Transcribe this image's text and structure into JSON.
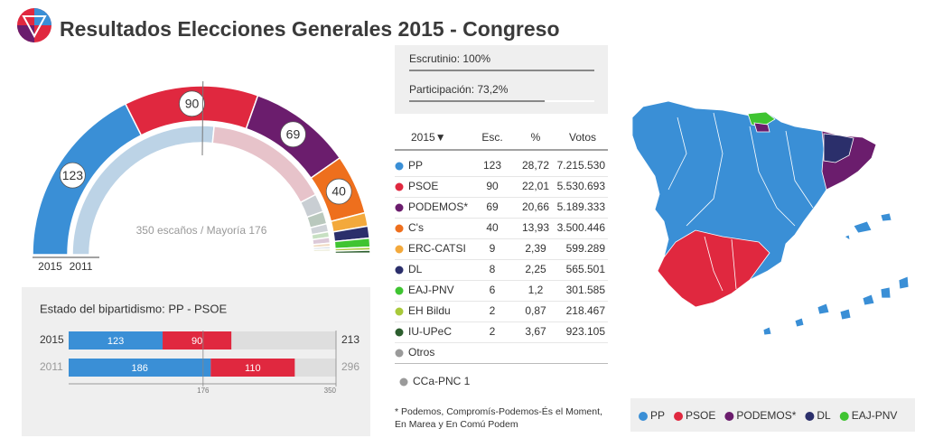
{
  "header": {
    "title": "Resultados Elecciones Generales 2015 - Congreso"
  },
  "chart_data": [
    {
      "type": "semicircle",
      "center_text": "350 escaños / Mayoría 176",
      "majority": 176,
      "series": [
        {
          "name": "2015",
          "values": [
            123,
            90,
            69,
            40,
            9,
            8,
            6,
            2,
            2,
            1
          ],
          "colors": [
            "#3a8fd6",
            "#e0283f",
            "#6b1d6d",
            "#ee6f1d",
            "#f3a93c",
            "#2b2f6b",
            "#3fc431",
            "#a8c93a",
            "#2c5e2e",
            "#9a9a9a"
          ]
        },
        {
          "name": "2011",
          "values": [
            186,
            110,
            16,
            11,
            7,
            5,
            5,
            3,
            2,
            2,
            1,
            1,
            1
          ],
          "colors": [
            "#bcd3e6",
            "#e7c3ca",
            "#c9ced3",
            "#b9c8bd",
            "#cfd3d8",
            "#c7e0c2",
            "#dcc9d8",
            "#f1dcc4",
            "#cfd9e3",
            "#e3e3c8",
            "#d8d1e6",
            "#d6e6d6",
            "#e0d6d6"
          ]
        }
      ]
    },
    {
      "type": "bar",
      "title": "Estado del bipartidismo: PP - PSOE",
      "categories": [
        "2015",
        "2011"
      ],
      "series": [
        {
          "color": "#3a8fd6",
          "values": [
            123,
            186
          ]
        },
        {
          "color": "#e0283f",
          "values": [
            90,
            110
          ]
        }
      ],
      "totals": [
        213,
        296
      ],
      "xlim": [
        0,
        350
      ],
      "xticks": [
        176,
        350
      ]
    }
  ],
  "scrutiny": {
    "escrutinio": {
      "text": "Escrutinio: 100%",
      "value": 100
    },
    "participacion": {
      "text": "Participación: 73,2%",
      "value": 73.2
    }
  },
  "table": {
    "header": [
      "2015▼",
      "Esc.",
      "%",
      "Votos"
    ],
    "rows": [
      {
        "name": "PP",
        "color": "#3a8fd6",
        "seats": 123,
        "pct": "28,72",
        "votes": "7.215.530"
      },
      {
        "name": "PSOE",
        "color": "#e0283f",
        "seats": 90,
        "pct": "22,01",
        "votes": "5.530.693"
      },
      {
        "name": "PODEMOS*",
        "color": "#6b1d6d",
        "seats": 69,
        "pct": "20,66",
        "votes": "5.189.333"
      },
      {
        "name": "C's",
        "color": "#ee6f1d",
        "seats": 40,
        "pct": "13,93",
        "votes": "3.500.446"
      },
      {
        "name": "ERC-CATSI",
        "color": "#f3a93c",
        "seats": 9,
        "pct": "2,39",
        "votes": "599.289"
      },
      {
        "name": "DL",
        "color": "#2b2f6b",
        "seats": 8,
        "pct": "2,25",
        "votes": "565.501"
      },
      {
        "name": "EAJ-PNV",
        "color": "#3fc431",
        "seats": 6,
        "pct": "1,2",
        "votes": "301.585"
      },
      {
        "name": "EH Bildu",
        "color": "#a8c93a",
        "seats": 2,
        "pct": "0,87",
        "votes": "218.467"
      },
      {
        "name": "IU-UPeC",
        "color": "#2c5e2e",
        "seats": 2,
        "pct": "3,67",
        "votes": "923.105"
      },
      {
        "name": "Otros",
        "color": "#9a9a9a"
      }
    ],
    "extra": {
      "name": "CCa-PNC 1",
      "color": "#9a9a9a"
    },
    "footnote": [
      "* Podemos, Compromís-Podemos-És el Moment,",
      "En Marea y En Comú Podem"
    ]
  },
  "map_legend": [
    {
      "name": "PP",
      "color": "#3a8fd6"
    },
    {
      "name": "PSOE",
      "color": "#e0283f"
    },
    {
      "name": "PODEMOS*",
      "color": "#6b1d6d"
    },
    {
      "name": "DL",
      "color": "#2b2f6b"
    },
    {
      "name": "EAJ-PNV",
      "color": "#3fc431"
    }
  ]
}
